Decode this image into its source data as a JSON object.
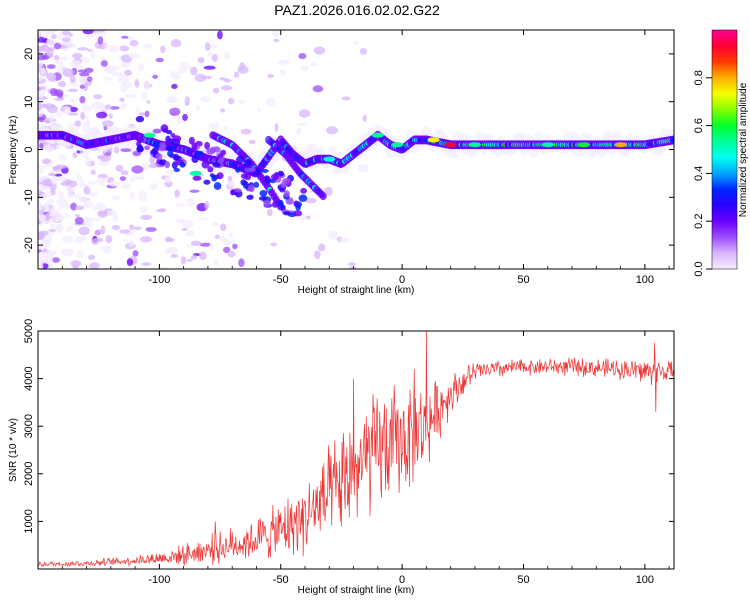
{
  "chart_data": [
    {
      "type": "heatmap",
      "title": "PAZ1.2026.016.02.02.G22",
      "xlabel": "Height of straight line (km)",
      "ylabel": "Frequency (Hz)",
      "xlim": [
        -150,
        112
      ],
      "ylim": [
        -25,
        25
      ],
      "xticks": [
        -100,
        -50,
        0,
        50,
        100
      ],
      "yticks": [
        -20,
        -10,
        0,
        10,
        20
      ],
      "colorbar": {
        "label": "Normalized spectral amplitude",
        "range": [
          0,
          1
        ],
        "ticks": [
          0.0,
          0.2,
          0.4,
          0.6,
          0.8
        ],
        "tick_labels": [
          "0.0",
          "0.2",
          "0.4",
          "0.6",
          "0.8"
        ],
        "colors": [
          "#f4ecff",
          "#d9b5ff",
          "#9b4cff",
          "#6a00ff",
          "#2a00ff",
          "#0026ff",
          "#00a6ff",
          "#00ffee",
          "#00ff9c",
          "#00ff2a",
          "#86ff00",
          "#f4ff00",
          "#ffb000",
          "#ff3a00",
          "#ff0033",
          "#ff0099"
        ]
      },
      "ridge": [
        {
          "h": -140,
          "f": 3
        },
        {
          "h": -130,
          "f": 1
        },
        {
          "h": -120,
          "f": 2
        },
        {
          "h": -110,
          "f": 3
        },
        {
          "h": -100,
          "f": 1
        },
        {
          "h": -90,
          "f": 0
        },
        {
          "h": -80,
          "f": -2
        },
        {
          "h": -70,
          "f": -3
        },
        {
          "h": -60,
          "f": -5
        },
        {
          "h": -50,
          "f": 2
        },
        {
          "h": -45,
          "f": -1
        },
        {
          "h": -40,
          "f": -3
        },
        {
          "h": -35,
          "f": -2
        },
        {
          "h": -30,
          "f": -2
        },
        {
          "h": -25,
          "f": -3
        },
        {
          "h": -20,
          "f": -1
        },
        {
          "h": -15,
          "f": 1
        },
        {
          "h": -10,
          "f": 3
        },
        {
          "h": -5,
          "f": 1
        },
        {
          "h": 0,
          "f": 0
        },
        {
          "h": 5,
          "f": 2
        },
        {
          "h": 10,
          "f": 2
        },
        {
          "h": 20,
          "f": 1
        },
        {
          "h": 30,
          "f": 1
        },
        {
          "h": 50,
          "f": 1
        },
        {
          "h": 70,
          "f": 1
        },
        {
          "h": 90,
          "f": 1
        },
        {
          "h": 100,
          "f": 1
        },
        {
          "h": 112,
          "f": 2
        }
      ],
      "secondary_ridges": [
        [
          {
            "h": -78,
            "f": 3
          },
          {
            "h": -70,
            "f": 1
          },
          {
            "h": -62,
            "f": -3
          },
          {
            "h": -55,
            "f": -8
          },
          {
            "h": -50,
            "f": -12
          }
        ],
        [
          {
            "h": -55,
            "f": 2
          },
          {
            "h": -48,
            "f": -1
          },
          {
            "h": -42,
            "f": -5
          },
          {
            "h": -36,
            "f": -8
          },
          {
            "h": -32,
            "f": -10
          }
        ]
      ]
    },
    {
      "type": "line",
      "title": "",
      "xlabel": "Height of straight line (km)",
      "ylabel": "SNR (10 * v/v)",
      "xlim": [
        -150,
        112
      ],
      "ylim": [
        0,
        5000
      ],
      "xticks": [
        -100,
        -50,
        0,
        50,
        100
      ],
      "yticks": [
        1000,
        2000,
        3000,
        4000,
        5000
      ],
      "series": [
        {
          "name": "SNR",
          "color": "#ee3333",
          "envelope": [
            {
              "x": -150,
              "mean": 100,
              "spread": 60
            },
            {
              "x": -130,
              "mean": 120,
              "spread": 80
            },
            {
              "x": -110,
              "mean": 180,
              "spread": 120
            },
            {
              "x": -95,
              "mean": 250,
              "spread": 200
            },
            {
              "x": -80,
              "mean": 400,
              "spread": 350
            },
            {
              "x": -65,
              "mean": 550,
              "spread": 450
            },
            {
              "x": -50,
              "mean": 800,
              "spread": 700
            },
            {
              "x": -40,
              "mean": 1100,
              "spread": 900
            },
            {
              "x": -30,
              "mean": 1500,
              "spread": 1200
            },
            {
              "x": -20,
              "mean": 2000,
              "spread": 1500
            },
            {
              "x": -10,
              "mean": 2500,
              "spread": 1500
            },
            {
              "x": 0,
              "mean": 2700,
              "spread": 1400
            },
            {
              "x": 10,
              "mean": 3000,
              "spread": 1000
            },
            {
              "x": 20,
              "mean": 3700,
              "spread": 500
            },
            {
              "x": 30,
              "mean": 4150,
              "spread": 250
            },
            {
              "x": 50,
              "mean": 4250,
              "spread": 200
            },
            {
              "x": 70,
              "mean": 4250,
              "spread": 220
            },
            {
              "x": 90,
              "mean": 4200,
              "spread": 250
            },
            {
              "x": 100,
              "mean": 4150,
              "spread": 350
            },
            {
              "x": 112,
              "mean": 4150,
              "spread": 250
            }
          ],
          "spikes": [
            {
              "x": -77,
              "y": 1000
            },
            {
              "x": -20,
              "y": 4000
            },
            {
              "x": 5,
              "y": 4200
            },
            {
              "x": 10,
              "y": 5000
            },
            {
              "x": 104,
              "y": 4750
            },
            {
              "x": 104.5,
              "y": 3300
            }
          ]
        }
      ]
    }
  ]
}
